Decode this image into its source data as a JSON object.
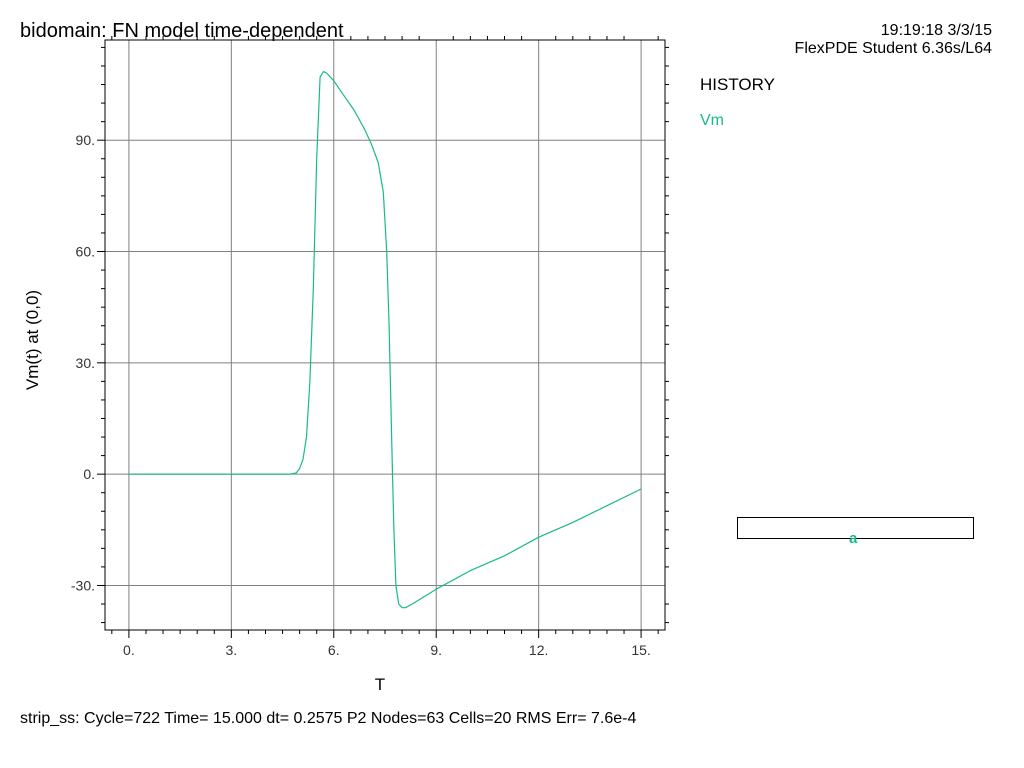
{
  "header": {
    "title": "bidomain: FN model time-dependent",
    "timestamp": "19:19:18 3/3/15",
    "version": "FlexPDE Student 6.36s/L64"
  },
  "panel": {
    "history_label": "HISTORY",
    "legend_series": "Vm",
    "box_label": "a"
  },
  "status_line": "strip_ss:  Cycle=722  Time= 15.000  dt= 0.2575  P2  Nodes=63 Cells=20 RMS Err= 7.6e-4",
  "colors": {
    "series": "#19b98c",
    "grid": "#808080",
    "axes": "#000000"
  },
  "chart_data": {
    "type": "line",
    "xlabel": "T",
    "ylabel": "Vm(t) at (0,0)",
    "xlim": [
      -0.7,
      15.7
    ],
    "ylim": [
      -42,
      117
    ],
    "x_ticks": [
      0,
      3,
      6,
      9,
      12,
      15
    ],
    "x_tick_labels": [
      "0.",
      "3.",
      "6.",
      "9.",
      "12.",
      "15."
    ],
    "y_ticks": [
      -30,
      0,
      30,
      60,
      90
    ],
    "y_tick_labels": [
      "-30.",
      "0.",
      "30.",
      "60.",
      "90."
    ],
    "grid": true,
    "series": [
      {
        "name": "Vm",
        "x": [
          0,
          4.7,
          4.9,
          5.0,
          5.1,
          5.2,
          5.3,
          5.4,
          5.5,
          5.6,
          5.7,
          5.8,
          6.0,
          6.3,
          6.6,
          6.9,
          7.1,
          7.3,
          7.45,
          7.55,
          7.62,
          7.67,
          7.72,
          7.76,
          7.82,
          7.9,
          8.0,
          8.1,
          8.3,
          9.0,
          10.0,
          11.0,
          12.0,
          13.0,
          14.0,
          15.0
        ],
        "y": [
          0,
          0,
          0.3,
          1.5,
          4,
          10,
          25,
          50,
          85,
          107,
          108.5,
          108,
          106,
          102,
          98,
          93,
          89,
          84,
          76,
          60,
          40,
          20,
          0,
          -15,
          -30,
          -35,
          -36,
          -36,
          -35,
          -31,
          -26,
          -22,
          -17,
          -13,
          -8.5,
          -4
        ]
      }
    ]
  }
}
